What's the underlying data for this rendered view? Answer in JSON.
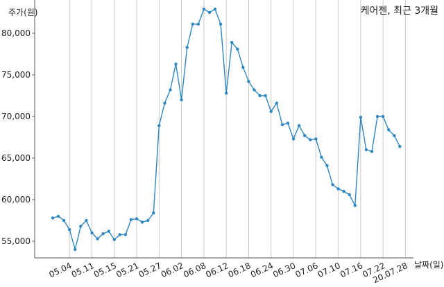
{
  "chart_data": {
    "type": "line",
    "title": "케어젠, 최근 3개월",
    "ylabel": "주가(원)",
    "xlabel": "날짜(일)",
    "color": "#2e86c1",
    "grid": "vertical",
    "ylim": [
      53000,
      84000
    ],
    "y_ticks": [
      55000,
      60000,
      65000,
      70000,
      75000,
      80000
    ],
    "y_tick_labels": [
      "55,000",
      "60,000",
      "65,000",
      "70,000",
      "75,000",
      "80,000"
    ],
    "x_tick_labels": [
      "05.04",
      "05.11",
      "05.15",
      "05.21",
      "05.27",
      "06.02",
      "06.08",
      "06.12",
      "06.18",
      "06.24",
      "06.30",
      "07.06",
      "07.10",
      "07.16",
      "07.22",
      "20.07.28"
    ],
    "x_tick_indices": [
      3,
      7,
      11,
      15,
      19,
      23,
      27,
      31,
      35,
      39,
      43,
      47,
      51,
      55,
      59,
      63
    ],
    "values": [
      57800,
      58000,
      57500,
      56400,
      54000,
      56800,
      57500,
      56000,
      55300,
      55900,
      56200,
      55200,
      55800,
      55800,
      57600,
      57700,
      57300,
      57500,
      58400,
      68900,
      71600,
      73200,
      76300,
      72000,
      78300,
      81100,
      81100,
      82900,
      82500,
      82900,
      81100,
      72800,
      78900,
      78100,
      75900,
      74200,
      73200,
      72500,
      72500,
      70600,
      71600,
      69000,
      69200,
      67300,
      68900,
      67700,
      67200,
      67300,
      65100,
      64100,
      61800,
      61300,
      61000,
      60600,
      59300,
      69900,
      66000,
      65800,
      70000,
      70000,
      68400,
      67700,
      66400
    ]
  }
}
